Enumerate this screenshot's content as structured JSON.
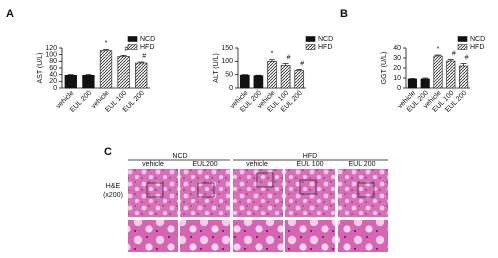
{
  "panels": {
    "a": "A",
    "b": "B",
    "c": "C"
  },
  "chart_data": [
    {
      "type": "bar",
      "y_label": "AST (U/L)",
      "categories": [
        "vehicle",
        "EUL 200",
        "vehicle",
        "EUL 100",
        "EUL 200"
      ],
      "series": [
        {
          "name": "NCD",
          "color": "#111111",
          "fill_style": "solid",
          "values": [
            38,
            38,
            null,
            null,
            null
          ],
          "errors": [
            2,
            2,
            null,
            null,
            null
          ]
        },
        {
          "name": "HFD",
          "color": "#333333",
          "fill_style": "hatched",
          "values": [
            null,
            null,
            112,
            95,
            75
          ],
          "errors": [
            null,
            null,
            4,
            3,
            3
          ]
        }
      ],
      "annotations": [
        null,
        null,
        "*",
        "#",
        "#"
      ],
      "ylim": [
        0,
        120
      ],
      "yticks": [
        0,
        20,
        40,
        60,
        80,
        100,
        120
      ],
      "legend": "upper right"
    },
    {
      "type": "bar",
      "y_label": "ALT (U/L)",
      "categories": [
        "vehicle",
        "EUL 200",
        "vehicle",
        "EUL 100",
        "EUL 200"
      ],
      "series": [
        {
          "name": "NCD",
          "color": "#111111",
          "fill_style": "solid",
          "values": [
            48,
            46,
            null,
            null,
            null
          ],
          "errors": [
            2,
            2,
            null,
            null,
            null
          ]
        },
        {
          "name": "HFD",
          "color": "#333333",
          "fill_style": "hatched",
          "values": [
            null,
            null,
            100,
            85,
            65
          ],
          "errors": [
            null,
            null,
            6,
            7,
            4
          ]
        }
      ],
      "annotations": [
        null,
        null,
        "*",
        "#",
        "#"
      ],
      "ylim": [
        0,
        150
      ],
      "yticks": [
        0,
        50,
        100,
        150
      ],
      "legend": "upper right"
    },
    {
      "type": "bar",
      "y_label": "GGT (U/L)",
      "categories": [
        "vehicle",
        "EUL 200",
        "vehicle",
        "EUL 100",
        "EUL 200"
      ],
      "series": [
        {
          "name": "NCD",
          "color": "#111111",
          "fill_style": "solid",
          "values": [
            9,
            9,
            null,
            null,
            null
          ],
          "errors": [
            0.5,
            1,
            null,
            null,
            null
          ]
        },
        {
          "name": "HFD",
          "color": "#333333",
          "fill_style": "hatched",
          "values": [
            null,
            null,
            32,
            27,
            22
          ],
          "errors": [
            null,
            null,
            1,
            1.5,
            2.5
          ]
        }
      ],
      "annotations": [
        null,
        null,
        "*",
        "#",
        "#"
      ],
      "ylim": [
        0,
        40
      ],
      "yticks": [
        0,
        10,
        20,
        30,
        40
      ],
      "legend": "upper right"
    }
  ],
  "histology": {
    "groups": [
      "NCD",
      "HFD"
    ],
    "columns": [
      "vehicle",
      "EUL200",
      "vehicle",
      "EUL 100",
      "EUL 200"
    ],
    "row_label": [
      "H&E",
      "(x200)"
    ]
  }
}
